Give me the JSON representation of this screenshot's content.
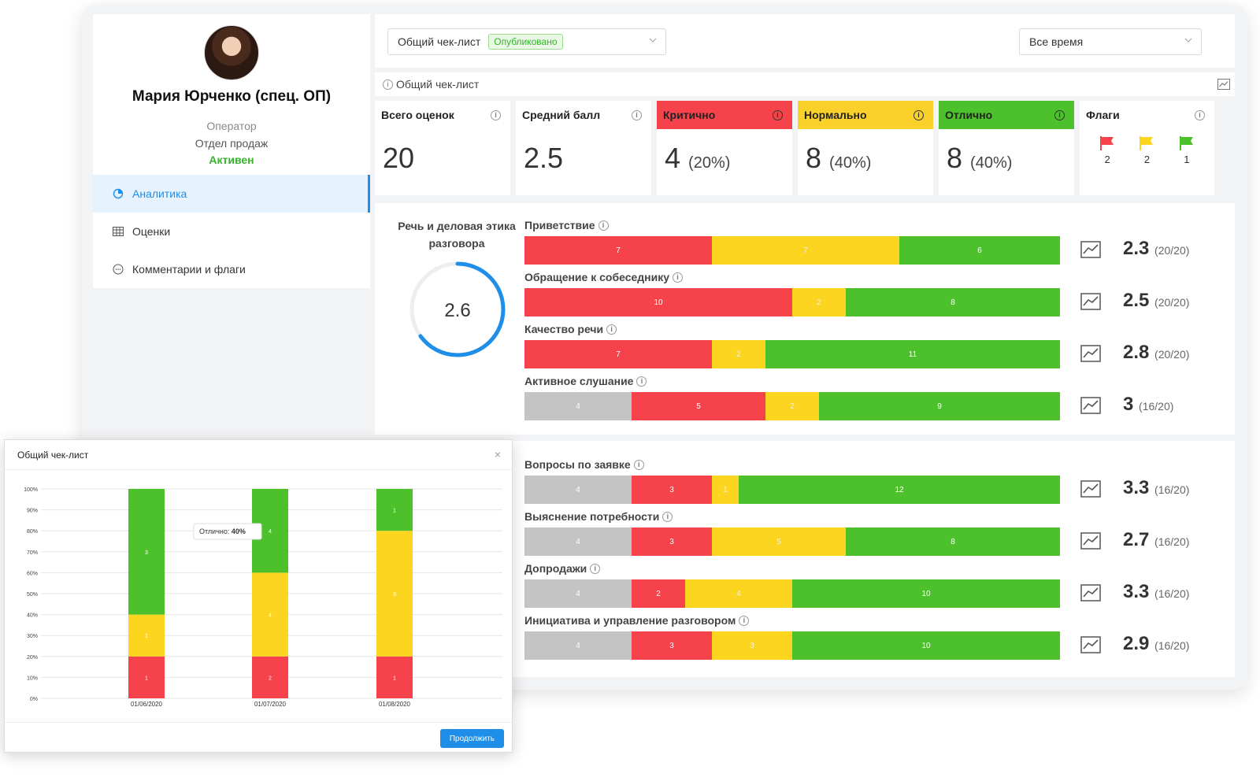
{
  "profile": {
    "name": "Мария Юрченко (спец. ОП)",
    "role": "Оператор",
    "department": "Отдел продаж",
    "status": "Активен"
  },
  "nav": {
    "items": [
      {
        "label": "Аналитика",
        "icon": "pie-chart-icon",
        "active": true
      },
      {
        "label": "Оценки",
        "icon": "table-icon",
        "active": false
      },
      {
        "label": "Комментарии и флаги",
        "icon": "comment-icon",
        "active": false
      }
    ]
  },
  "filters": {
    "checklist": "Общий чек-лист",
    "checklist_status": "Опубликовано",
    "period": "Все время"
  },
  "section": {
    "title": "Общий чек-лист"
  },
  "stats": {
    "total": {
      "label": "Всего оценок",
      "value": "20"
    },
    "average": {
      "label": "Средний балл",
      "value": "2.5"
    },
    "critical": {
      "label": "Критично",
      "value": "4",
      "pct": "(20%)"
    },
    "normal": {
      "label": "Нормально",
      "value": "8",
      "pct": "(40%)"
    },
    "excellent": {
      "label": "Отлично",
      "value": "8",
      "pct": "(40%)"
    },
    "flags": {
      "label": "Флаги",
      "red": "2",
      "yellow": "2",
      "green": "1"
    }
  },
  "colors": {
    "red": "#f5424b",
    "yellow": "#fcd520",
    "green": "#4cc12c",
    "grey": "#c4c4c4",
    "accent": "#1e8ee8"
  },
  "group1": {
    "title": "Речь и деловая этика разговора",
    "score": "2.6",
    "score_fraction": 0.65,
    "criteria": [
      {
        "label": "Приветствие",
        "grey": 0,
        "red": 7,
        "yellow": 7,
        "green": 6,
        "score": "2.3",
        "count": "(20/20)"
      },
      {
        "label": "Обращение к собеседнику",
        "grey": 0,
        "red": 10,
        "yellow": 2,
        "green": 8,
        "score": "2.5",
        "count": "(20/20)"
      },
      {
        "label": "Качество речи",
        "grey": 0,
        "red": 7,
        "yellow": 2,
        "green": 11,
        "score": "2.8",
        "count": "(20/20)"
      },
      {
        "label": "Активное слушание",
        "grey": 4,
        "red": 5,
        "yellow": 2,
        "green": 9,
        "score": "3",
        "count": "(16/20)"
      }
    ]
  },
  "group2": {
    "criteria": [
      {
        "label": "Вопросы по заявке",
        "grey": 4,
        "red": 3,
        "yellow": 1,
        "green": 12,
        "score": "3.3",
        "count": "(16/20)"
      },
      {
        "label": "Выяснение потребности",
        "grey": 4,
        "red": 3,
        "yellow": 5,
        "green": 8,
        "score": "2.7",
        "count": "(16/20)"
      },
      {
        "label": "Допродажи",
        "grey": 4,
        "red": 2,
        "yellow": 4,
        "green": 10,
        "score": "3.3",
        "count": "(16/20)"
      },
      {
        "label": "Инициатива и управление разговором",
        "grey": 4,
        "red": 3,
        "yellow": 3,
        "green": 10,
        "score": "2.9",
        "count": "(16/20)"
      }
    ]
  },
  "modal": {
    "title": "Общий чек-лист",
    "button": "Продолжить",
    "close": "×"
  },
  "chart_data": {
    "type": "bar",
    "stacked": true,
    "title": "Общий чек-лист",
    "categories": [
      "01/06/2020",
      "01/07/2020",
      "01/08/2020"
    ],
    "yticks": [
      "0%",
      "10%",
      "20%",
      "30%",
      "40%",
      "50%",
      "60%",
      "70%",
      "80%",
      "90%",
      "100%"
    ],
    "ylim": [
      0,
      100
    ],
    "series": [
      {
        "name": "Критично",
        "color": "#f5424b",
        "percent": [
          20,
          20,
          20
        ],
        "counts": [
          "1",
          "2",
          "1"
        ]
      },
      {
        "name": "Нормально",
        "color": "#fcd520",
        "percent": [
          20,
          40,
          60
        ],
        "counts": [
          "1",
          "4",
          "3"
        ]
      },
      {
        "name": "Отлично",
        "color": "#4cc12c",
        "percent": [
          60,
          40,
          20
        ],
        "counts": [
          "3",
          "4",
          "1"
        ]
      }
    ],
    "tooltip": {
      "label": "Отлично:",
      "value": "40%"
    }
  }
}
